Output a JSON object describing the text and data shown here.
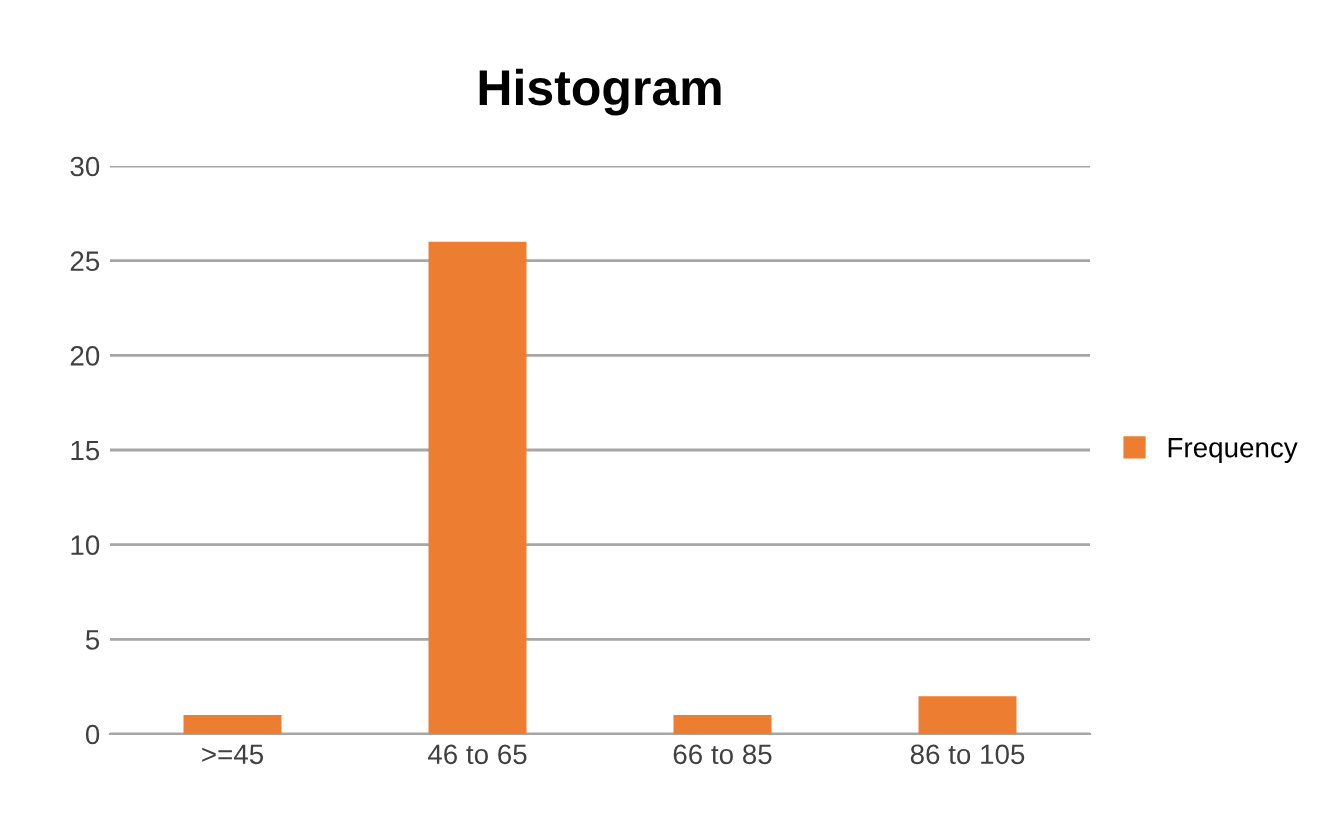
{
  "chart_data": {
    "type": "bar",
    "title": "Histogram",
    "categories": [
      ">=45",
      "46 to 65",
      "66 to 85",
      "86 to 105"
    ],
    "series": [
      {
        "name": "Frequency",
        "color": "#ed7d31",
        "values": [
          1,
          26,
          1,
          2
        ]
      }
    ],
    "ylim": [
      0,
      30
    ],
    "yticks": [
      0,
      5,
      10,
      15,
      20,
      25,
      30
    ],
    "grid": "y",
    "legend": "right"
  }
}
